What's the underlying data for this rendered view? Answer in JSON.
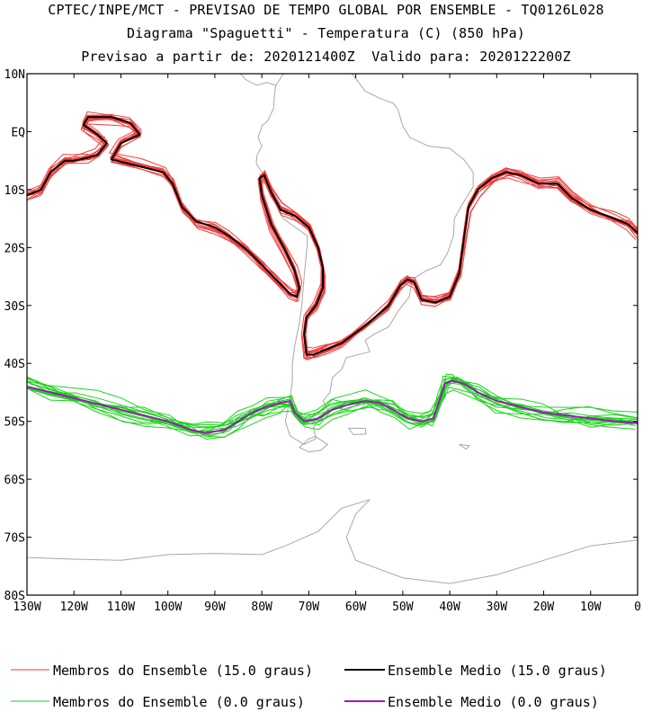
{
  "header": {
    "line1": "CPTEC/INPE/MCT - PREVISAO DE TEMPO GLOBAL POR ENSEMBLE - TQ0126L028",
    "line2": "Diagrama \"Spaguetti\" - Temperatura (C) (850 hPa)",
    "line3": "Previsao a partir de: 2020121400Z  Valido para: 2020122200Z"
  },
  "map": {
    "lon_range": [
      -130,
      0
    ],
    "lat_range": [
      -80,
      10
    ],
    "lat_ticks": [
      {
        "lat": 10,
        "label": "10N"
      },
      {
        "lat": 0,
        "label": "EQ"
      },
      {
        "lat": -10,
        "label": "10S"
      },
      {
        "lat": -20,
        "label": "20S"
      },
      {
        "lat": -30,
        "label": "30S"
      },
      {
        "lat": -40,
        "label": "40S"
      },
      {
        "lat": -50,
        "label": "50S"
      },
      {
        "lat": -60,
        "label": "60S"
      },
      {
        "lat": -70,
        "label": "70S"
      },
      {
        "lat": -80,
        "label": "80S"
      }
    ],
    "lon_ticks": [
      {
        "lon": -130,
        "label": "130W"
      },
      {
        "lon": -120,
        "label": "120W"
      },
      {
        "lon": -110,
        "label": "110W"
      },
      {
        "lon": -100,
        "label": "100W"
      },
      {
        "lon": -90,
        "label": "90W"
      },
      {
        "lon": -80,
        "label": "80W"
      },
      {
        "lon": -70,
        "label": "70W"
      },
      {
        "lon": -60,
        "label": "60W"
      },
      {
        "lon": -50,
        "label": "50W"
      },
      {
        "lon": -40,
        "label": "40W"
      },
      {
        "lon": -30,
        "label": "30W"
      },
      {
        "lon": -20,
        "label": "20W"
      },
      {
        "lon": -10,
        "label": "10W"
      },
      {
        "lon": 0,
        "label": "0"
      }
    ],
    "colors": {
      "member15": "#f23c3c",
      "mean15": "#000000",
      "member0": "#1ed21e",
      "mean0": "#9a1ab8",
      "coast": "#a8a8a8"
    },
    "isotherm_15_mean": [
      [
        -130,
        -11
      ],
      [
        -127,
        -10
      ],
      [
        -125,
        -7
      ],
      [
        -122,
        -5
      ],
      [
        -120,
        -5
      ],
      [
        -117,
        -4.5
      ],
      [
        -115,
        -4
      ],
      [
        -113,
        -2
      ],
      [
        -115,
        -0.5
      ],
      [
        -118,
        1.2
      ],
      [
        -117,
        2.5
      ],
      [
        -112,
        2.5
      ],
      [
        -108,
        1.5
      ],
      [
        -106,
        -0.5
      ],
      [
        -110,
        -2
      ],
      [
        -112,
        -4.8
      ],
      [
        -106,
        -6
      ],
      [
        -101,
        -7
      ],
      [
        -99,
        -9
      ],
      [
        -97,
        -13
      ],
      [
        -94,
        -15.5
      ],
      [
        -90,
        -16.5
      ],
      [
        -87,
        -18
      ],
      [
        -83,
        -20.5
      ],
      [
        -80,
        -23
      ],
      [
        -77,
        -25.5
      ],
      [
        -74,
        -28
      ],
      [
        -72.5,
        -28.5
      ],
      [
        -72,
        -27
      ],
      [
        -73,
        -24
      ],
      [
        -75,
        -20.5
      ],
      [
        -78,
        -16
      ],
      [
        -80,
        -11
      ],
      [
        -80.5,
        -8
      ],
      [
        -79.5,
        -7.5
      ],
      [
        -78,
        -10.5
      ],
      [
        -76,
        -13.5
      ],
      [
        -73,
        -14.5
      ],
      [
        -70,
        -16.5
      ],
      [
        -68,
        -20
      ],
      [
        -67,
        -23.5
      ],
      [
        -67,
        -27
      ],
      [
        -68.5,
        -30
      ],
      [
        -70.5,
        -32
      ],
      [
        -71,
        -35
      ],
      [
        -70.5,
        -38.5
      ],
      [
        -69,
        -38.5
      ],
      [
        -66,
        -37.5
      ],
      [
        -63,
        -36.5
      ],
      [
        -58,
        -33.5
      ],
      [
        -53,
        -30
      ],
      [
        -50.5,
        -26.5
      ],
      [
        -49,
        -25.5
      ],
      [
        -47.5,
        -26
      ],
      [
        -46,
        -29
      ],
      [
        -43,
        -29.5
      ],
      [
        -40,
        -28.5
      ],
      [
        -38,
        -24.5
      ],
      [
        -37,
        -18.5
      ],
      [
        -36,
        -13
      ],
      [
        -34,
        -10
      ],
      [
        -31,
        -8
      ],
      [
        -28,
        -7
      ],
      [
        -25,
        -7.5
      ],
      [
        -21,
        -9
      ],
      [
        -17,
        -9
      ],
      [
        -14,
        -11.5
      ],
      [
        -10,
        -13.5
      ],
      [
        -5,
        -15
      ],
      [
        -2,
        -16
      ],
      [
        0,
        -17.5
      ]
    ],
    "isotherm_0_mean": [
      [
        -130,
        -44
      ],
      [
        -125,
        -45
      ],
      [
        -120,
        -46
      ],
      [
        -115,
        -47
      ],
      [
        -110,
        -48
      ],
      [
        -105,
        -49
      ],
      [
        -100,
        -50
      ],
      [
        -95,
        -51.5
      ],
      [
        -92,
        -52
      ],
      [
        -88,
        -51.5
      ],
      [
        -85,
        -50
      ],
      [
        -82,
        -48.5
      ],
      [
        -79,
        -47.5
      ],
      [
        -76,
        -46.8
      ],
      [
        -74,
        -46.5
      ],
      [
        -73,
        -48.5
      ],
      [
        -71,
        -50
      ],
      [
        -68,
        -49.5
      ],
      [
        -65,
        -48
      ],
      [
        -62,
        -47.2
      ],
      [
        -58,
        -46.5
      ],
      [
        -55,
        -46.8
      ],
      [
        -52,
        -48
      ],
      [
        -49,
        -49.5
      ],
      [
        -46,
        -50
      ],
      [
        -43.5,
        -49.5
      ],
      [
        -42,
        -46
      ],
      [
        -41,
        -43.5
      ],
      [
        -39.5,
        -43
      ],
      [
        -37,
        -43.5
      ],
      [
        -34,
        -45
      ],
      [
        -30,
        -46.5
      ],
      [
        -25,
        -47.5
      ],
      [
        -20,
        -48.5
      ],
      [
        -15,
        -49
      ],
      [
        -10,
        -49.5
      ],
      [
        -5,
        -50
      ],
      [
        0,
        -50.3
      ]
    ]
  },
  "legend": {
    "member15_label": "Membros do Ensemble (15.0 graus)",
    "mean15_label": "Ensemble Medio (15.0 graus)",
    "member0_label": "Membros do Ensemble (0.0 graus)",
    "mean0_label": "Ensemble Medio (0.0 graus)"
  }
}
